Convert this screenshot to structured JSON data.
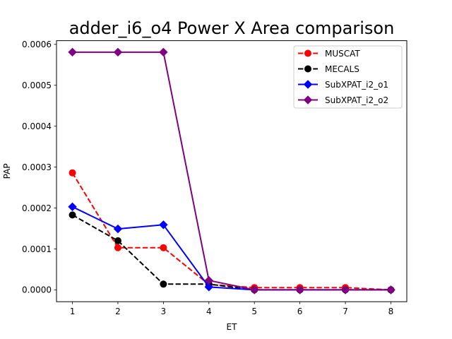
{
  "chart_data": {
    "type": "line",
    "title": "adder_i6_o4 Power X Area comparison",
    "xlabel": "ET",
    "ylabel": "PAP",
    "x": [
      1,
      2,
      3,
      4,
      5,
      6,
      7,
      8
    ],
    "xlim": [
      0.65,
      8.35
    ],
    "ylim": [
      -2.9e-05,
      0.000609
    ],
    "x_ticks": [
      1,
      2,
      3,
      4,
      5,
      6,
      7,
      8
    ],
    "x_tick_labels": [
      "1",
      "2",
      "3",
      "4",
      "5",
      "6",
      "7",
      "8"
    ],
    "y_ticks": [
      0,
      0.0001,
      0.0002,
      0.0003,
      0.0004,
      0.0005,
      0.0006
    ],
    "y_tick_labels": [
      "0.0000",
      "0.0001",
      "0.0002",
      "0.0003",
      "0.0004",
      "0.0005",
      "0.0006"
    ],
    "legend_position": "top-right",
    "series": [
      {
        "name": "MUSCAT",
        "color": "#ff0000",
        "style": "dashed",
        "marker": "circle",
        "values": [
          0.000286,
          0.000103,
          0.000103,
          1.3e-05,
          5.5e-06,
          5.5e-06,
          5.5e-06,
          0.0
        ]
      },
      {
        "name": "MECALS",
        "color": "#000000",
        "style": "dashed",
        "marker": "circle",
        "values": [
          0.000183,
          0.00012,
          1.4e-05,
          1.4e-05,
          0.0,
          0.0,
          0.0,
          0.0
        ]
      },
      {
        "name": "SubXPAT_i2_o1",
        "color": "#0000ff",
        "style": "solid",
        "marker": "diamond",
        "values": [
          0.000203,
          0.000149,
          0.000159,
          7e-06,
          0.0,
          0.0,
          0.0,
          0.0
        ]
      },
      {
        "name": "SubXPAT_i2_o2",
        "color": "#800080",
        "style": "solid",
        "marker": "diamond",
        "values": [
          0.000581,
          0.000581,
          0.000581,
          2.3e-05,
          0.0,
          0.0,
          0.0,
          0.0
        ]
      }
    ]
  }
}
